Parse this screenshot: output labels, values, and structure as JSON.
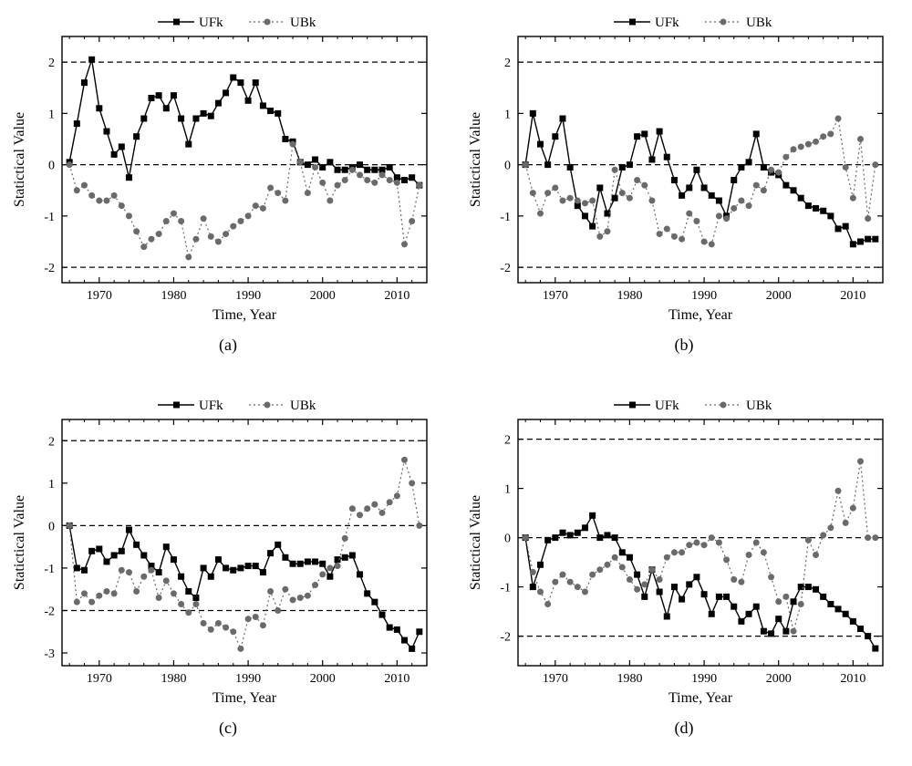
{
  "figure": {
    "background_color": "#ffffff",
    "font_family": "Times New Roman",
    "panels": [
      "a",
      "b",
      "c",
      "d"
    ],
    "layout": "2x2",
    "xlabel": "Time, Year",
    "ylabel": "Statictical Value",
    "label_fontsize": 16,
    "tick_fontsize": 14,
    "xticks": [
      1970,
      1980,
      1990,
      2000,
      2010
    ],
    "xlim": [
      1965,
      2014
    ],
    "legend": {
      "items": [
        {
          "label": "UFk",
          "marker": "square",
          "color": "#000000",
          "line_dash": "solid"
        },
        {
          "label": "UBk",
          "marker": "circle",
          "color": "#6a6a6a",
          "line_dash": "dotted"
        }
      ],
      "fontsize": 15
    },
    "axis_color": "#000000",
    "axis_width": 1.4,
    "dashed_ref_color": "#000000",
    "dashed_ref_dash": "6,4",
    "series_style": {
      "ufk": {
        "color": "#000000",
        "marker": "square",
        "marker_size": 6,
        "line_width": 1.4,
        "dash": "none"
      },
      "ubk": {
        "color": "#6a6a6a",
        "marker": "circle",
        "marker_size": 6,
        "line_width": 1.2,
        "dash": "2,3"
      }
    }
  },
  "panel_a": {
    "caption": "(a)",
    "ylim": [
      -2.3,
      2.5
    ],
    "yticks": [
      -2,
      -1,
      0,
      1,
      2
    ],
    "ref_lines": [
      -2,
      0,
      2
    ],
    "years": [
      1966,
      1967,
      1968,
      1969,
      1970,
      1971,
      1972,
      1973,
      1974,
      1975,
      1976,
      1977,
      1978,
      1979,
      1980,
      1981,
      1982,
      1983,
      1984,
      1985,
      1986,
      1987,
      1988,
      1989,
      1990,
      1991,
      1992,
      1993,
      1994,
      1995,
      1996,
      1997,
      1998,
      1999,
      2000,
      2001,
      2002,
      2003,
      2004,
      2005,
      2006,
      2007,
      2008,
      2009,
      2010,
      2011,
      2012,
      2013
    ],
    "ufk": [
      0.05,
      0.8,
      1.6,
      2.05,
      1.1,
      0.65,
      0.2,
      0.35,
      -0.25,
      0.55,
      0.9,
      1.3,
      1.35,
      1.1,
      1.35,
      0.9,
      0.4,
      0.9,
      1.0,
      0.95,
      1.2,
      1.4,
      1.7,
      1.6,
      1.25,
      1.6,
      1.15,
      1.05,
      1.0,
      0.5,
      0.45,
      0.05,
      0.0,
      0.1,
      -0.05,
      0.05,
      -0.1,
      -0.1,
      -0.05,
      0.0,
      -0.1,
      -0.1,
      -0.1,
      -0.05,
      -0.25,
      -0.3,
      -0.25,
      -0.4
    ],
    "ubk": [
      0.0,
      -0.5,
      -0.4,
      -0.6,
      -0.7,
      -0.7,
      -0.6,
      -0.8,
      -1.0,
      -1.3,
      -1.6,
      -1.45,
      -1.35,
      -1.1,
      -0.95,
      -1.1,
      -1.8,
      -1.45,
      -1.05,
      -1.4,
      -1.5,
      -1.35,
      -1.2,
      -1.1,
      -1.0,
      -0.8,
      -0.85,
      -0.45,
      -0.55,
      -0.7,
      0.4,
      0.05,
      -0.55,
      -0.05,
      -0.35,
      -0.7,
      -0.4,
      -0.3,
      -0.1,
      -0.2,
      -0.3,
      -0.35,
      -0.2,
      -0.3,
      -0.35,
      -1.55,
      -1.1,
      -0.4
    ]
  },
  "panel_b": {
    "caption": "(b)",
    "ylim": [
      -2.3,
      2.5
    ],
    "yticks": [
      -2,
      -1,
      0,
      1,
      2
    ],
    "ref_lines": [
      -2,
      0,
      2
    ],
    "years": [
      1966,
      1967,
      1968,
      1969,
      1970,
      1971,
      1972,
      1973,
      1974,
      1975,
      1976,
      1977,
      1978,
      1979,
      1980,
      1981,
      1982,
      1983,
      1984,
      1985,
      1986,
      1987,
      1988,
      1989,
      1990,
      1991,
      1992,
      1993,
      1994,
      1995,
      1996,
      1997,
      1998,
      1999,
      2000,
      2001,
      2002,
      2003,
      2004,
      2005,
      2006,
      2007,
      2008,
      2009,
      2010,
      2011,
      2012,
      2013
    ],
    "ufk": [
      0.0,
      1.0,
      0.4,
      0.0,
      0.55,
      0.9,
      -0.05,
      -0.8,
      -1.0,
      -1.2,
      -0.45,
      -0.95,
      -0.65,
      -0.05,
      0.0,
      0.55,
      0.6,
      0.1,
      0.65,
      0.15,
      -0.3,
      -0.6,
      -0.45,
      -0.1,
      -0.45,
      -0.6,
      -0.7,
      -1.0,
      -0.3,
      -0.05,
      0.05,
      0.6,
      -0.05,
      -0.15,
      -0.2,
      -0.4,
      -0.5,
      -0.65,
      -0.8,
      -0.85,
      -0.9,
      -1.0,
      -1.25,
      -1.2,
      -1.55,
      -1.5,
      -1.45,
      -1.45
    ],
    "ubk": [
      0.0,
      -0.55,
      -0.95,
      -0.55,
      -0.45,
      -0.7,
      -0.65,
      -0.7,
      -0.75,
      -0.7,
      -1.4,
      -1.3,
      -0.1,
      -0.55,
      -0.65,
      -0.3,
      -0.4,
      -0.7,
      -1.35,
      -1.25,
      -1.4,
      -1.45,
      -0.95,
      -1.1,
      -1.5,
      -1.55,
      -1.0,
      -1.05,
      -0.85,
      -0.7,
      -0.8,
      -0.4,
      -0.5,
      -0.1,
      -0.15,
      0.15,
      0.3,
      0.35,
      0.4,
      0.45,
      0.55,
      0.6,
      0.9,
      -0.05,
      -0.65,
      0.5,
      -1.05,
      0.0
    ]
  },
  "panel_c": {
    "caption": "(c)",
    "ylim": [
      -3.3,
      2.5
    ],
    "yticks": [
      -3,
      -2,
      -1,
      0,
      1,
      2
    ],
    "ref_lines": [
      -2,
      0,
      2
    ],
    "years": [
      1966,
      1967,
      1968,
      1969,
      1970,
      1971,
      1972,
      1973,
      1974,
      1975,
      1976,
      1977,
      1978,
      1979,
      1980,
      1981,
      1982,
      1983,
      1984,
      1985,
      1986,
      1987,
      1988,
      1989,
      1990,
      1991,
      1992,
      1993,
      1994,
      1995,
      1996,
      1997,
      1998,
      1999,
      2000,
      2001,
      2002,
      2003,
      2004,
      2005,
      2006,
      2007,
      2008,
      2009,
      2010,
      2011,
      2012,
      2013
    ],
    "ufk": [
      0.0,
      -1.0,
      -1.05,
      -0.6,
      -0.55,
      -0.85,
      -0.7,
      -0.6,
      -0.1,
      -0.45,
      -0.7,
      -0.95,
      -1.1,
      -0.5,
      -0.8,
      -1.2,
      -1.55,
      -1.7,
      -1.0,
      -1.2,
      -0.8,
      -1.0,
      -1.05,
      -1.0,
      -0.95,
      -0.95,
      -1.1,
      -0.65,
      -0.45,
      -0.75,
      -0.9,
      -0.9,
      -0.85,
      -0.85,
      -0.9,
      -1.2,
      -0.8,
      -0.75,
      -0.7,
      -1.15,
      -1.6,
      -1.8,
      -2.1,
      -2.4,
      -2.45,
      -2.7,
      -2.9,
      -2.5
    ],
    "ubk": [
      0.0,
      -1.8,
      -1.6,
      -1.8,
      -1.65,
      -1.55,
      -1.6,
      -1.05,
      -1.1,
      -1.55,
      -1.2,
      -1.05,
      -1.7,
      -1.3,
      -1.6,
      -1.85,
      -2.05,
      -1.85,
      -2.3,
      -2.45,
      -2.3,
      -2.4,
      -2.5,
      -2.9,
      -2.2,
      -2.15,
      -2.35,
      -1.55,
      -2.0,
      -1.5,
      -1.75,
      -1.7,
      -1.65,
      -1.4,
      -1.15,
      -1.0,
      -0.95,
      -0.3,
      0.4,
      0.25,
      0.4,
      0.5,
      0.3,
      0.55,
      0.7,
      1.55,
      1.0,
      0.0
    ]
  },
  "panel_d": {
    "caption": "(d)",
    "ylim": [
      -2.6,
      2.4
    ],
    "yticks": [
      -2,
      -1,
      0,
      1,
      2
    ],
    "ref_lines": [
      -2,
      0,
      2
    ],
    "years": [
      1966,
      1967,
      1968,
      1969,
      1970,
      1971,
      1972,
      1973,
      1974,
      1975,
      1976,
      1977,
      1978,
      1979,
      1980,
      1981,
      1982,
      1983,
      1984,
      1985,
      1986,
      1987,
      1988,
      1989,
      1990,
      1991,
      1992,
      1993,
      1994,
      1995,
      1996,
      1997,
      1998,
      1999,
      2000,
      2001,
      2002,
      2003,
      2004,
      2005,
      2006,
      2007,
      2008,
      2009,
      2010,
      2011,
      2012,
      2013
    ],
    "ufk": [
      0.0,
      -1.0,
      -0.55,
      -0.05,
      0.0,
      0.1,
      0.05,
      0.1,
      0.2,
      0.45,
      0.0,
      0.05,
      0.0,
      -0.3,
      -0.4,
      -0.75,
      -1.2,
      -0.65,
      -1.1,
      -1.6,
      -1.0,
      -1.25,
      -0.95,
      -0.8,
      -1.15,
      -1.55,
      -1.2,
      -1.2,
      -1.4,
      -1.7,
      -1.55,
      -1.4,
      -1.9,
      -1.95,
      -1.65,
      -1.9,
      -1.3,
      -1.0,
      -1.0,
      -1.05,
      -1.2,
      -1.35,
      -1.45,
      -1.55,
      -1.7,
      -1.85,
      -2.0,
      -2.25
    ],
    "ubk": [
      0.0,
      -0.7,
      -1.1,
      -1.35,
      -0.9,
      -0.75,
      -0.9,
      -1.0,
      -1.1,
      -0.75,
      -0.65,
      -0.55,
      -0.4,
      -0.6,
      -0.85,
      -1.05,
      -0.95,
      -0.65,
      -0.85,
      -0.4,
      -0.3,
      -0.3,
      -0.15,
      -0.1,
      -0.15,
      0.0,
      -0.1,
      -0.45,
      -0.85,
      -0.9,
      -0.35,
      -0.1,
      -0.3,
      -0.8,
      -1.3,
      -1.2,
      -1.9,
      -1.35,
      -0.05,
      -0.35,
      0.05,
      0.2,
      0.95,
      0.3,
      0.6,
      1.55,
      0.0,
      0.0
    ]
  }
}
